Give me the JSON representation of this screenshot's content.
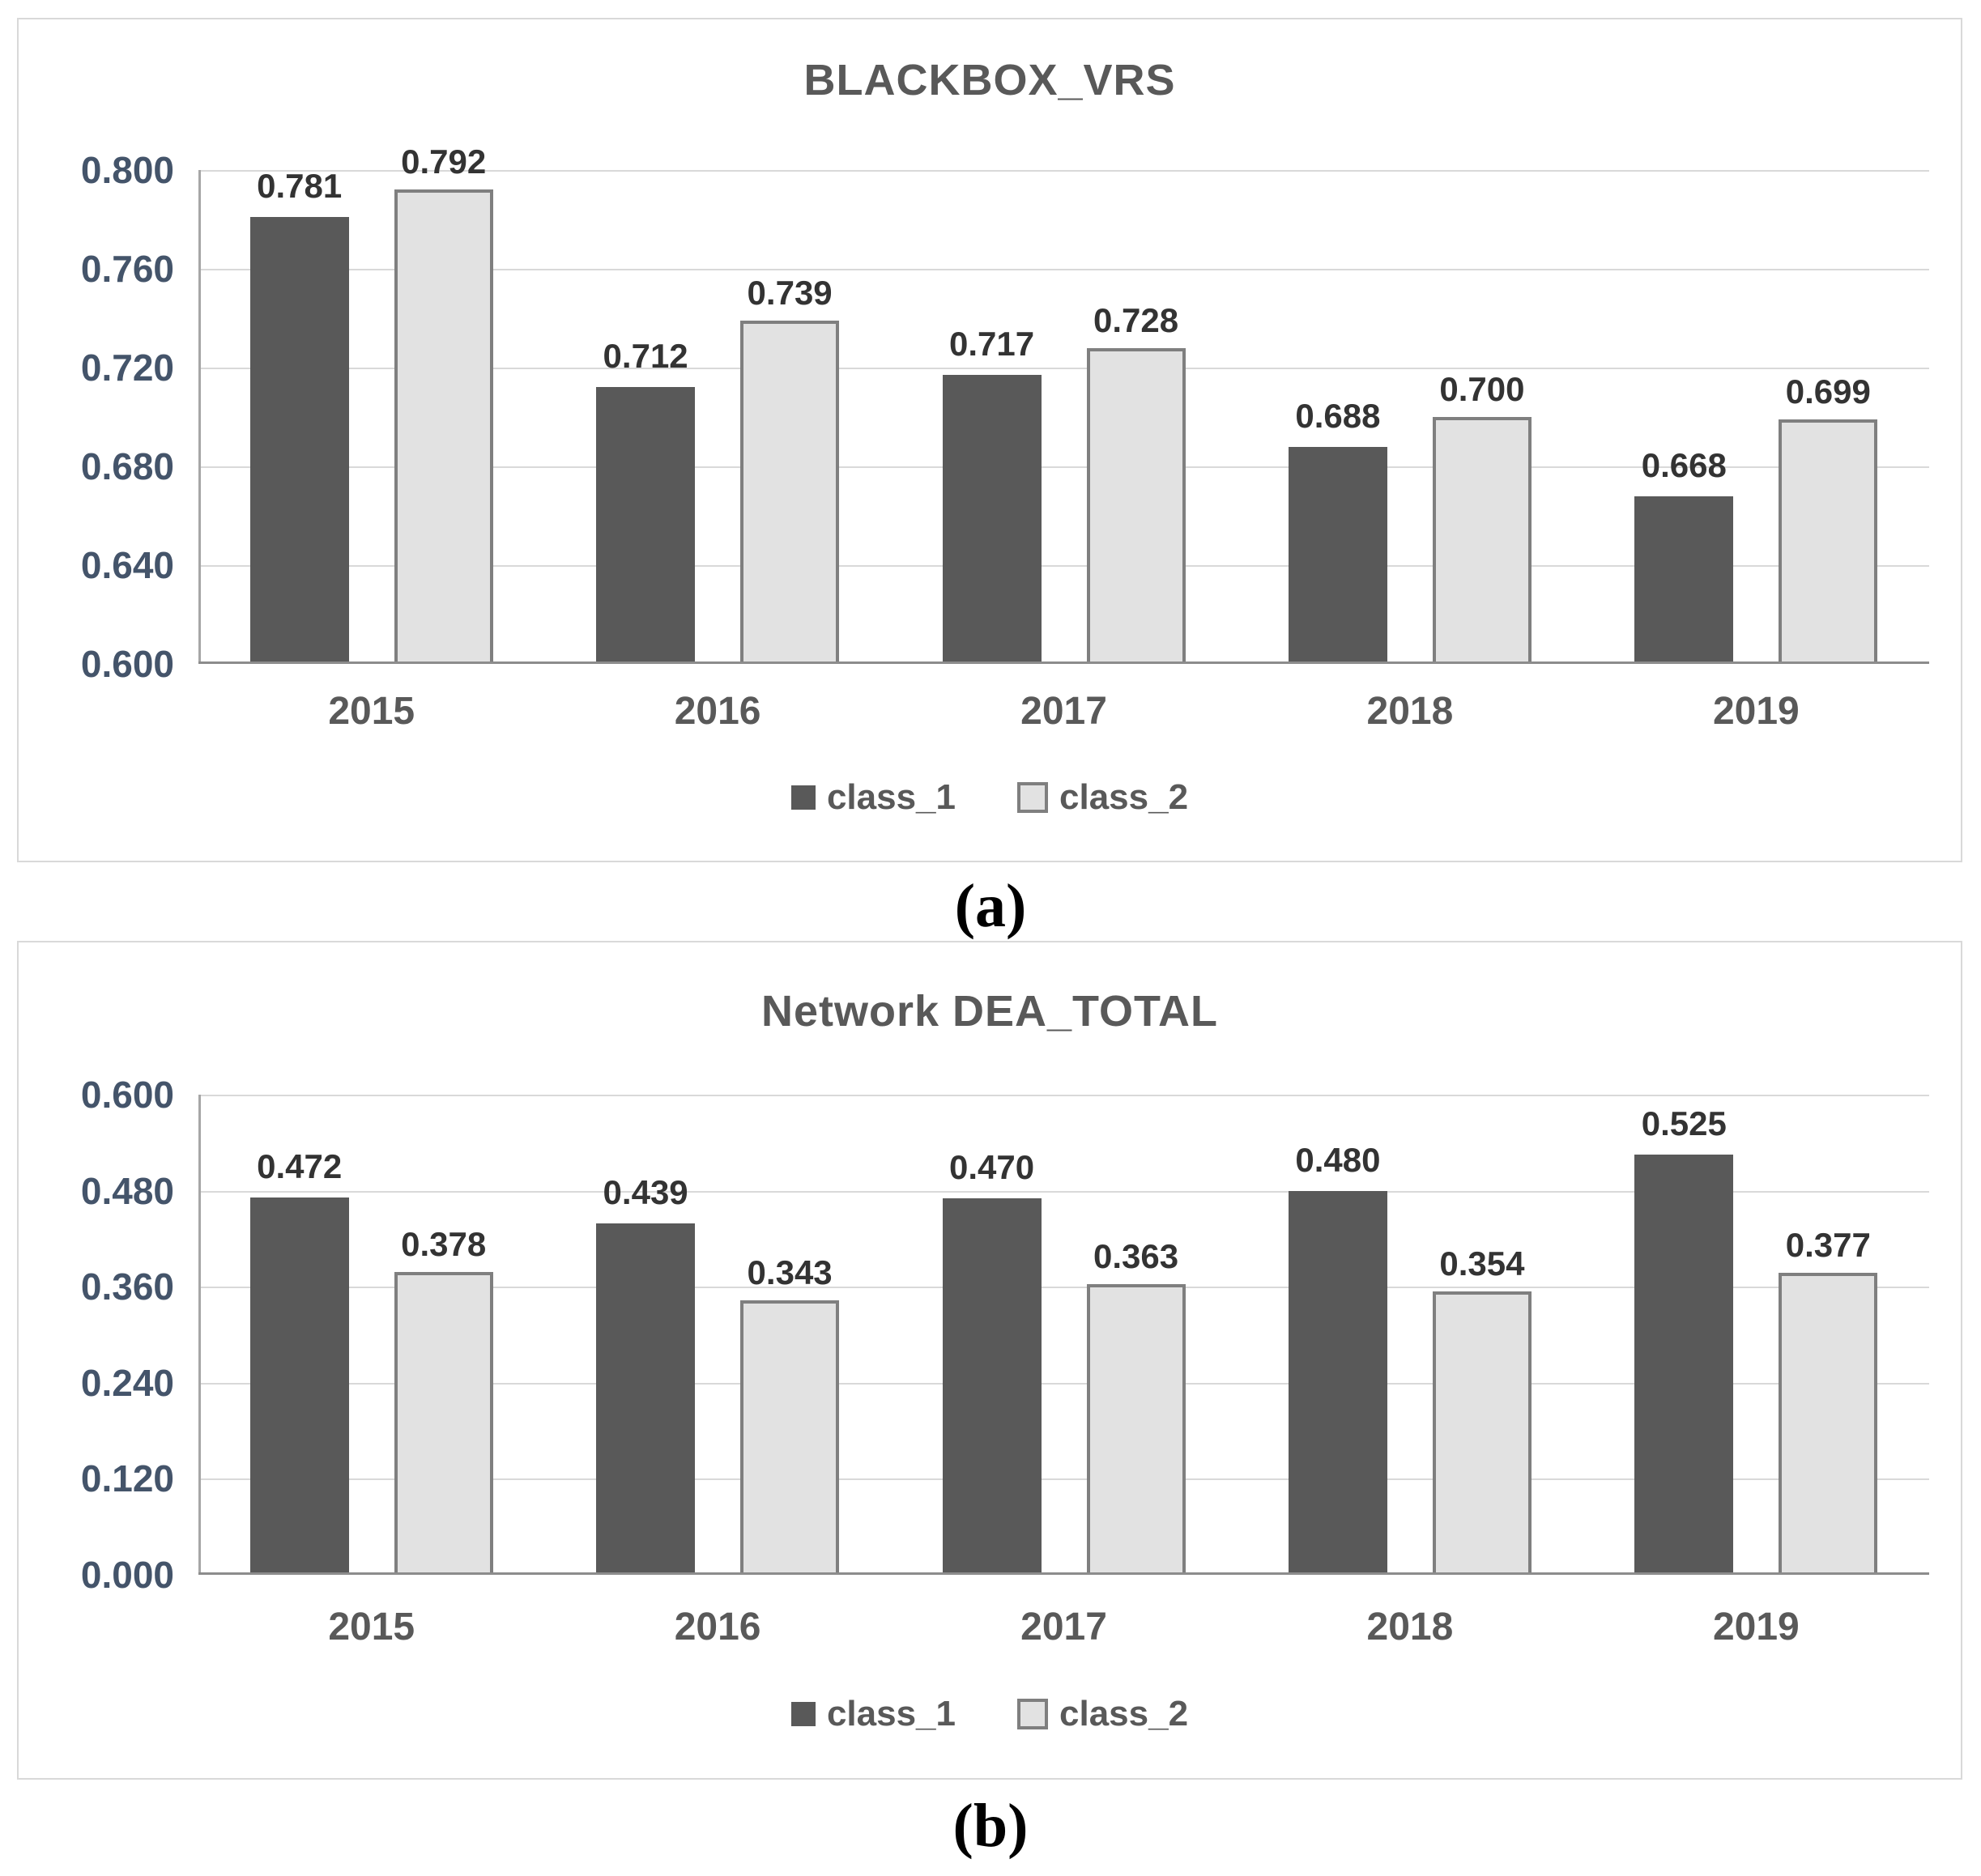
{
  "page_background": "#ffffff",
  "colors": {
    "class_1_fill": "#595959",
    "class_2_fill": "#e2e2e2",
    "class_2_border": "#7f7f7f",
    "gridline": "#d9d9d9",
    "axis_line": "#8c8c8c",
    "tick_label": "#44546a",
    "value_label": "#333333",
    "category_label": "#595959",
    "title": "#595959",
    "panel_border": "#d9d9d9"
  },
  "chart_data": [
    {
      "type": "bar",
      "title": "BLACKBOX_VRS",
      "caption": "(a)",
      "categories": [
        "2015",
        "2016",
        "2017",
        "2018",
        "2019"
      ],
      "series": [
        {
          "name": "class_1",
          "values": [
            0.781,
            0.712,
            0.717,
            0.688,
            0.668
          ],
          "labels": [
            "0.781",
            "0.712",
            "0.717",
            "0.688",
            "0.668"
          ]
        },
        {
          "name": "class_2",
          "values": [
            0.792,
            0.739,
            0.728,
            0.7,
            0.699
          ],
          "labels": [
            "0.792",
            "0.739",
            "0.728",
            "0.700",
            "0.699"
          ]
        }
      ],
      "ylim": [
        0.6,
        0.8
      ],
      "y_ticks": [
        "0.800",
        "0.760",
        "0.720",
        "0.680",
        "0.640",
        "0.600"
      ],
      "xlabel": "",
      "ylabel": "",
      "grid": true,
      "legend_position": "bottom"
    },
    {
      "type": "bar",
      "title": "Network DEA_TOTAL",
      "caption": "(b)",
      "categories": [
        "2015",
        "2016",
        "2017",
        "2018",
        "2019"
      ],
      "series": [
        {
          "name": "class_1",
          "values": [
            0.472,
            0.439,
            0.47,
            0.48,
            0.525
          ],
          "labels": [
            "0.472",
            "0.439",
            "0.470",
            "0.480",
            "0.525"
          ]
        },
        {
          "name": "class_2",
          "values": [
            0.378,
            0.343,
            0.363,
            0.354,
            0.377
          ],
          "labels": [
            "0.378",
            "0.343",
            "0.363",
            "0.354",
            "0.377"
          ]
        }
      ],
      "ylim": [
        0.0,
        0.6
      ],
      "y_ticks": [
        "0.600",
        "0.480",
        "0.360",
        "0.240",
        "0.120",
        "0.000"
      ],
      "xlabel": "",
      "ylabel": "",
      "grid": true,
      "legend_position": "bottom"
    }
  ]
}
